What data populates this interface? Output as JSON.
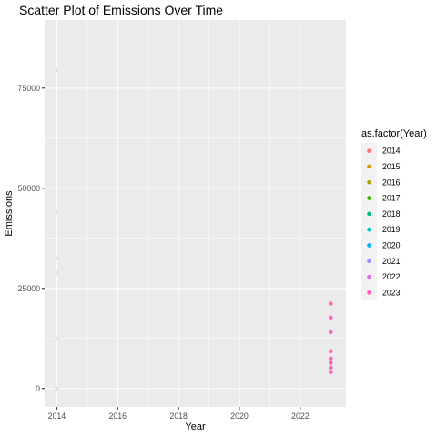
{
  "chart_data": {
    "type": "scatter",
    "title": "Scatter Plot of Emissions Over Time",
    "xlabel": "Year",
    "ylabel": "Emissions",
    "xlim": [
      2013.6,
      2023.5
    ],
    "ylim": [
      -4600,
      92000
    ],
    "x_ticks": [
      2014,
      2016,
      2018,
      2020,
      2022
    ],
    "y_ticks": [
      0,
      25000,
      50000,
      75000
    ],
    "y_tick_labels": [
      "0",
      "25000",
      "50000",
      "75000"
    ],
    "grid": true,
    "legend": {
      "title": "as.factor(Year)",
      "position": "right",
      "entries": [
        "2014",
        "2015",
        "2016",
        "2017",
        "2018",
        "2019",
        "2020",
        "2021",
        "2022",
        "2023"
      ],
      "colors": [
        "#F8766D",
        "#D89000",
        "#A3A500",
        "#39B600",
        "#00BF7D",
        "#00BFC4",
        "#00B0F6",
        "#9590FF",
        "#E76BF3",
        "#FF62BC"
      ]
    },
    "series": [
      {
        "name": "2014",
        "color": "#F2DCDC",
        "points": [
          {
            "x": 2014,
            "y": 79500
          },
          {
            "x": 2014,
            "y": 44000
          },
          {
            "x": 2014,
            "y": 32500
          },
          {
            "x": 2014,
            "y": 28800
          },
          {
            "x": 2014,
            "y": 12500
          },
          {
            "x": 2014,
            "y": 0
          }
        ]
      },
      {
        "name": "2023",
        "color": "#FF62BC",
        "points": [
          {
            "x": 2023,
            "y": 21200
          },
          {
            "x": 2023,
            "y": 17700
          },
          {
            "x": 2023,
            "y": 14100
          },
          {
            "x": 2023,
            "y": 9300
          },
          {
            "x": 2023,
            "y": 7500
          },
          {
            "x": 2023,
            "y": 6400
          },
          {
            "x": 2023,
            "y": 5200
          },
          {
            "x": 2023,
            "y": 4100
          }
        ]
      }
    ]
  }
}
